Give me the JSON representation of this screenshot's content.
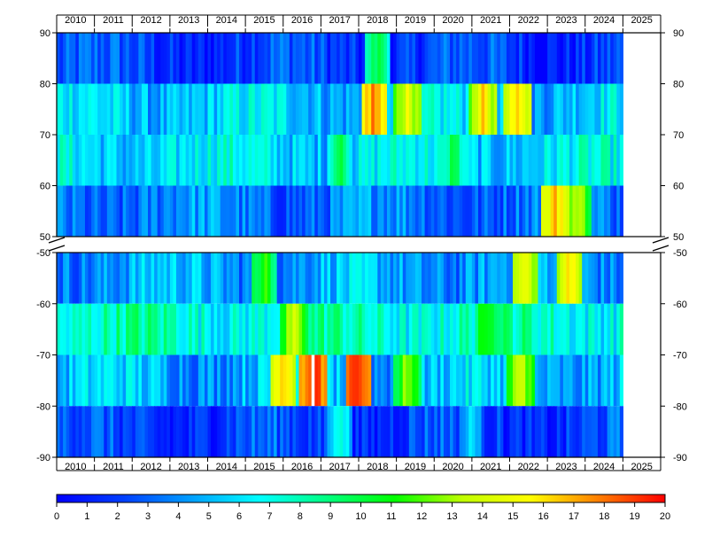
{
  "chart_data": {
    "type": "heatmap",
    "x_years": [
      "2010",
      "2011",
      "2012",
      "2013",
      "2014",
      "2015",
      "2016",
      "2017",
      "2018",
      "2019",
      "2020",
      "2021",
      "2022",
      "2023",
      "2024",
      "2025"
    ],
    "x_range": [
      "2010-01",
      "2025-12"
    ],
    "data_end": "2024-12",
    "y_axis_upper_ticks": [
      "90",
      "80",
      "70",
      "60",
      "50"
    ],
    "y_axis_lower_ticks": [
      "-50",
      "-60",
      "-70",
      "-80",
      "-90"
    ],
    "y_axis_break": [
      50,
      -50
    ],
    "colorbar": {
      "ticks": [
        "0",
        "1",
        "2",
        "3",
        "4",
        "5",
        "6",
        "7",
        "8",
        "9",
        "10",
        "11",
        "12",
        "13",
        "14",
        "15",
        "16",
        "17",
        "18",
        "19",
        "20"
      ],
      "range": [
        0,
        20
      ],
      "colormap": "jet",
      "colors": [
        "#0000ff",
        "#0040ff",
        "#00a0ff",
        "#00ffff",
        "#00ff80",
        "#00ff00",
        "#c0ff00",
        "#ffff00",
        "#ff8000",
        "#ff0000"
      ]
    },
    "bands": [
      {
        "lat_range": [
          80,
          90
        ],
        "mean": 2.0,
        "peaks": [
          {
            "year": 2018.5,
            "value": 10
          }
        ]
      },
      {
        "lat_range": [
          70,
          80
        ],
        "mean": 5.5,
        "peaks": [
          {
            "year": 2018.4,
            "value": 18
          },
          {
            "year": 2019.3,
            "value": 15
          },
          {
            "year": 2021.3,
            "value": 16
          },
          {
            "year": 2022.2,
            "value": 17
          }
        ]
      },
      {
        "lat_range": [
          60,
          70
        ],
        "mean": 6.0,
        "peaks": [
          {
            "year": 2017.5,
            "value": 10
          },
          {
            "year": 2020.5,
            "value": 10
          }
        ]
      },
      {
        "lat_range": [
          50,
          60
        ],
        "mean": 3.5,
        "peaks": [
          {
            "year": 2023.2,
            "value": 17
          },
          {
            "year": 2023.8,
            "value": 14
          }
        ]
      },
      {
        "lat_range": [
          -60,
          -50
        ],
        "mean": 4.5,
        "peaks": [
          {
            "year": 2015.5,
            "value": 12
          },
          {
            "year": 2022.4,
            "value": 15
          },
          {
            "year": 2023.6,
            "value": 16
          }
        ]
      },
      {
        "lat_range": [
          -70,
          -60
        ],
        "mean": 7.5,
        "peaks": [
          {
            "year": 2016.3,
            "value": 14
          },
          {
            "year": 2021.4,
            "value": 12
          }
        ]
      },
      {
        "lat_range": [
          -80,
          -70
        ],
        "mean": 5.0,
        "peaks": [
          {
            "year": 2016.0,
            "value": 17
          },
          {
            "year": 2016.8,
            "value": 20
          },
          {
            "year": 2018.0,
            "value": 20
          },
          {
            "year": 2019.3,
            "value": 13
          },
          {
            "year": 2022.3,
            "value": 14
          }
        ]
      },
      {
        "lat_range": [
          -90,
          -80
        ],
        "mean": 2.0,
        "peaks": [
          {
            "year": 2017.5,
            "value": 8
          },
          {
            "year": 2021.0,
            "value": 6
          }
        ]
      }
    ]
  }
}
